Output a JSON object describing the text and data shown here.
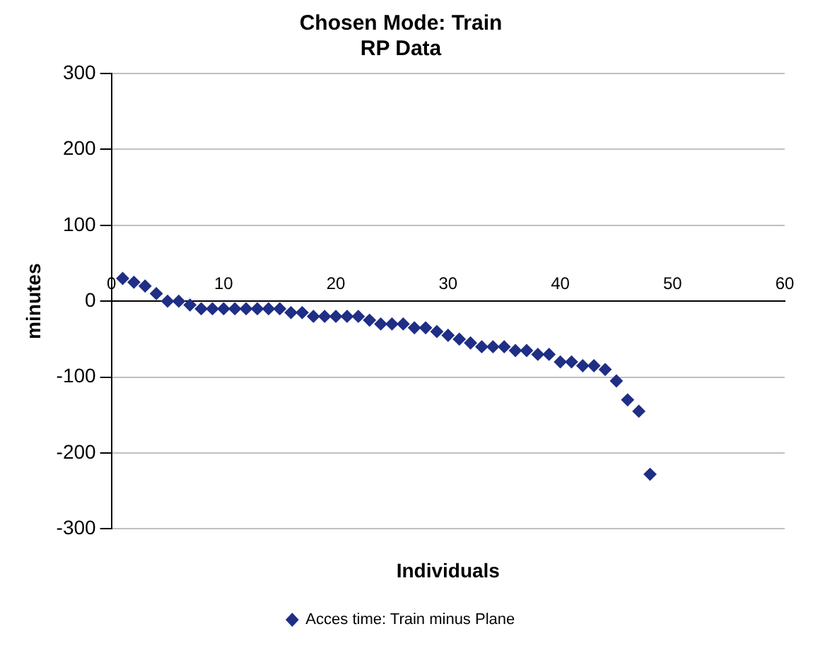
{
  "chart_data": {
    "type": "scatter",
    "title": "Chosen Mode: Train",
    "subtitle": "RP Data",
    "xlabel": "Individuals",
    "ylabel": "minutes",
    "x": [
      1,
      2,
      3,
      4,
      5,
      6,
      7,
      8,
      9,
      10,
      11,
      12,
      13,
      14,
      15,
      16,
      17,
      18,
      19,
      20,
      21,
      22,
      23,
      24,
      25,
      26,
      27,
      28,
      29,
      30,
      31,
      32,
      33,
      34,
      35,
      36,
      37,
      38,
      39,
      40,
      41,
      42,
      43,
      44,
      45,
      46,
      47,
      48
    ],
    "series": [
      {
        "name": "Acces time: Train minus Plane",
        "color": "#1f2f86",
        "values": [
          30,
          25,
          20,
          10,
          0,
          0,
          -5,
          -10,
          -10,
          -10,
          -10,
          -10,
          -10,
          -10,
          -10,
          -15,
          -15,
          -20,
          -20,
          -20,
          -20,
          -20,
          -25,
          -30,
          -30,
          -30,
          -35,
          -35,
          -40,
          -45,
          -50,
          -55,
          -60,
          -60,
          -60,
          -65,
          -65,
          -70,
          -70,
          -80,
          -80,
          -85,
          -85,
          -90,
          -105,
          -130,
          -145,
          -228
        ]
      }
    ],
    "xlim": [
      0,
      60
    ],
    "xticks": [
      0,
      10,
      20,
      30,
      40,
      50,
      60
    ],
    "ylim": [
      -300,
      300
    ],
    "yticks": [
      -300,
      -200,
      -100,
      0,
      100,
      200,
      300
    ],
    "grid": "y",
    "legend": "bottom",
    "marker": "diamond"
  }
}
